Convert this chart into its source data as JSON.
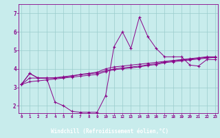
{
  "xlabel": "Windchill (Refroidissement éolien,°C)",
  "bg_color": "#c8ecec",
  "line_color": "#880088",
  "grid_color": "#99cccc",
  "xlabel_bg": "#440066",
  "xlabel_fg": "#ffffff",
  "x_ticks": [
    0,
    1,
    2,
    3,
    4,
    5,
    6,
    7,
    8,
    9,
    10,
    11,
    12,
    13,
    14,
    15,
    16,
    17,
    18,
    19,
    20,
    21,
    22,
    23
  ],
  "y_ticks": [
    2,
    3,
    4,
    5,
    6,
    7
  ],
  "xlim": [
    -0.3,
    23.3
  ],
  "ylim": [
    1.6,
    7.5
  ],
  "series": [
    [
      3.15,
      3.75,
      3.5,
      3.5,
      2.2,
      2.0,
      1.7,
      1.65,
      1.65,
      1.65,
      2.55,
      5.2,
      6.0,
      5.1,
      6.8,
      5.75,
      5.1,
      4.65,
      4.65,
      4.65,
      4.2,
      4.15,
      4.5,
      4.5
    ],
    [
      3.15,
      3.75,
      3.5,
      3.5,
      3.5,
      3.55,
      3.6,
      3.7,
      3.75,
      3.82,
      4.0,
      4.1,
      4.15,
      4.2,
      4.25,
      4.3,
      4.35,
      4.4,
      4.45,
      4.5,
      4.55,
      4.6,
      4.65,
      4.65
    ],
    [
      3.15,
      3.5,
      3.5,
      3.5,
      3.52,
      3.57,
      3.63,
      3.68,
      3.73,
      3.78,
      3.9,
      4.0,
      4.05,
      4.1,
      4.15,
      4.22,
      4.28,
      4.38,
      4.43,
      4.48,
      4.52,
      4.57,
      4.62,
      4.63
    ],
    [
      3.15,
      3.3,
      3.35,
      3.4,
      3.45,
      3.5,
      3.55,
      3.6,
      3.65,
      3.7,
      3.85,
      3.95,
      4.0,
      4.05,
      4.1,
      4.18,
      4.23,
      4.33,
      4.38,
      4.43,
      4.48,
      4.53,
      4.58,
      4.62
    ]
  ]
}
